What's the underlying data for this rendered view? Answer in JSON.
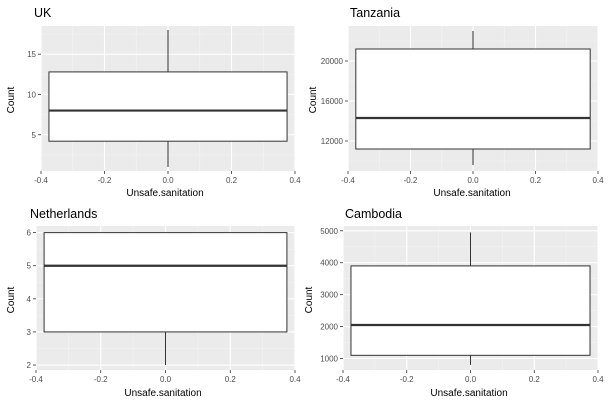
{
  "chart_data": [
    {
      "type": "boxplot",
      "title": "UK",
      "xlabel": "Unsafe.sanitation",
      "ylabel": "Count",
      "xlim": [
        -0.4,
        0.4
      ],
      "ylim": [
        0.5,
        18.5
      ],
      "xticks": [
        -0.4,
        -0.2,
        0.0,
        0.2,
        0.4
      ],
      "xtick_labels": [
        "-0.4",
        "-0.2",
        "0.0",
        "0.2",
        "0.4"
      ],
      "yticks": [
        5,
        10,
        15
      ],
      "ytick_labels": [
        "5",
        "10",
        "15"
      ],
      "box": {
        "min": 1,
        "q1": 4.2,
        "median": 8,
        "q3": 12.8,
        "max": 18,
        "x_from": -0.375,
        "x_to": 0.375
      }
    },
    {
      "type": "boxplot",
      "title": "Tanzania",
      "xlabel": "Unsafe.sanitation",
      "ylabel": "Count",
      "xlim": [
        -0.4,
        0.4
      ],
      "ylim": [
        9000,
        23500
      ],
      "xticks": [
        -0.4,
        -0.2,
        0.0,
        0.2,
        0.4
      ],
      "xtick_labels": [
        "-0.4",
        "-0.2",
        "0.0",
        "0.2",
        "0.4"
      ],
      "yticks": [
        12000,
        16000,
        20000
      ],
      "ytick_labels": [
        "12000",
        "16000",
        "20000"
      ],
      "box": {
        "min": 9600,
        "q1": 11200,
        "median": 14300,
        "q3": 21200,
        "max": 23000,
        "x_from": -0.375,
        "x_to": 0.375
      }
    },
    {
      "type": "boxplot",
      "title": "Netherlands",
      "xlabel": "Unsafe.sanitation",
      "ylabel": "Count",
      "xlim": [
        -0.4,
        0.4
      ],
      "ylim": [
        1.85,
        6.2
      ],
      "xticks": [
        -0.4,
        -0.2,
        0.0,
        0.2,
        0.4
      ],
      "xtick_labels": [
        "-0.4",
        "-0.2",
        "0.0",
        "0.2",
        "0.4"
      ],
      "yticks": [
        2,
        3,
        4,
        5,
        6
      ],
      "ytick_labels": [
        "2",
        "3",
        "4",
        "5",
        "6"
      ],
      "box": {
        "min": 2,
        "q1": 3,
        "median": 5,
        "q3": 6,
        "max": 6,
        "x_from": -0.375,
        "x_to": 0.375
      }
    },
    {
      "type": "boxplot",
      "title": "Cambodia",
      "xlabel": "Unsafe.sanitation",
      "ylabel": "Count",
      "xlim": [
        -0.4,
        0.4
      ],
      "ylim": [
        640,
        5150
      ],
      "xticks": [
        -0.4,
        -0.2,
        0.0,
        0.2,
        0.4
      ],
      "xtick_labels": [
        "-0.4",
        "-0.2",
        "0.0",
        "0.2",
        "0.4"
      ],
      "yticks": [
        1000,
        2000,
        3000,
        4000,
        5000
      ],
      "ytick_labels": [
        "1000",
        "2000",
        "3000",
        "4000",
        "5000"
      ],
      "box": {
        "min": 800,
        "q1": 1100,
        "median": 2050,
        "q3": 3900,
        "max": 4950,
        "x_from": -0.375,
        "x_to": 0.375
      }
    }
  ],
  "colors": {
    "panel_bg": "#ebebeb",
    "grid_major": "#ffffff",
    "grid_minor": "#f4f4f4",
    "box_fill": "#ffffff",
    "box_stroke": "#333333",
    "tick_text": "#4d4d4d"
  }
}
